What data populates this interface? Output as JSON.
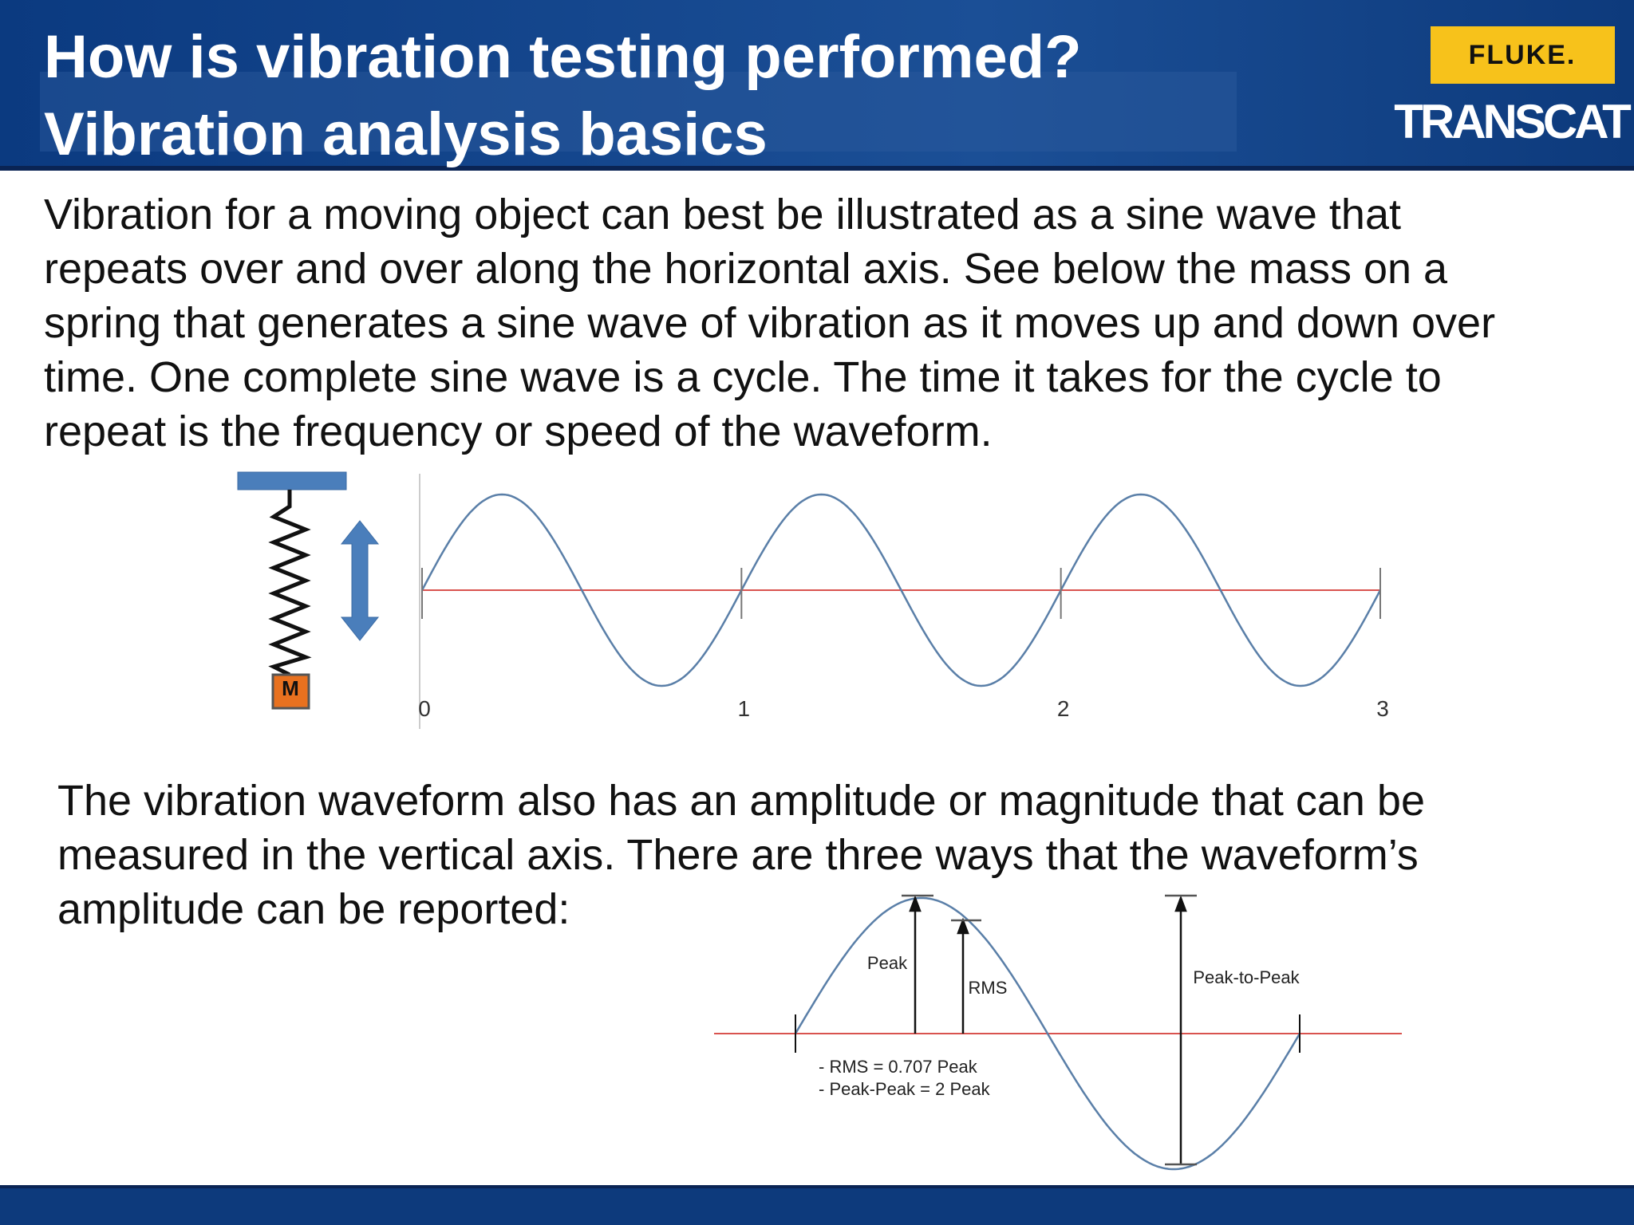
{
  "header": {
    "title_lines": [
      "How is vibration testing performed?",
      "Vibration analysis basics"
    ],
    "logo_top": "FLUKE.",
    "logo_bottom": "TRANSCAT"
  },
  "paragraph_1": [
    "Vibration for a moving object can best be illustrated as a sine wave that",
    "repeats over and over along the horizontal axis. See below the mass on a",
    "spring that generates a sine wave of vibration as it moves up and down over",
    "time. One complete sine wave is a cycle. The time it takes for the cycle to",
    "repeat is the frequency or speed of the waveform."
  ],
  "diagram_1": {
    "mass_label": "M",
    "axis_labels": [
      "0",
      "1",
      "2",
      "3"
    ]
  },
  "paragraph_2": [
    "The vibration waveform also has an amplitude or magnitude that can be",
    "measured in the vertical axis. There are three ways that the waveform’s",
    "amplitude can be reported:"
  ],
  "diagram_2": {
    "peak_label": "Peak",
    "rms_label": "RMS",
    "peak_to_peak_label": "Peak-to-Peak",
    "notes": [
      "- RMS = 0.707 Peak",
      "- Peak-Peak = 2 Peak"
    ]
  }
}
